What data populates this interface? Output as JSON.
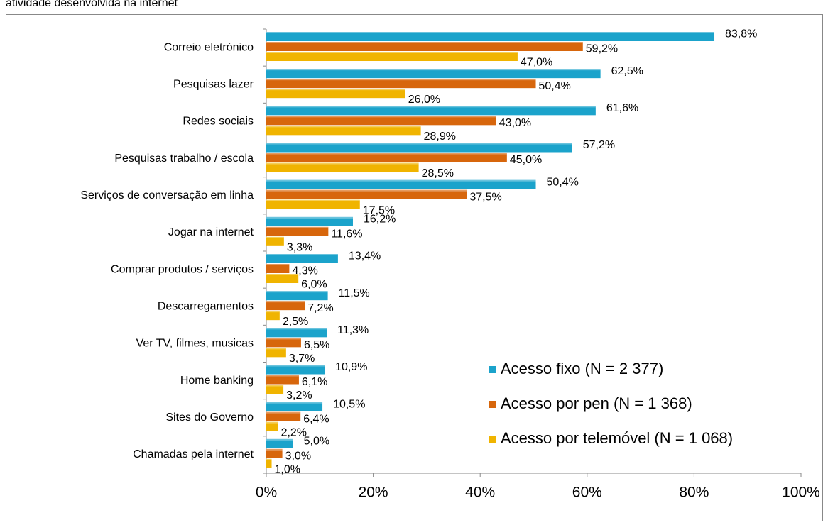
{
  "chart_data": {
    "type": "bar",
    "orientation": "horizontal",
    "subtitle": "atividade desenvolvida na internet",
    "categories": [
      "Correio eletrónico",
      "Pesquisas lazer",
      "Redes sociais",
      "Pesquisas trabalho / escola",
      "Serviços de conversação em linha",
      "Jogar na internet",
      "Comprar produtos / serviços",
      "Descarregamentos",
      "Ver TV, filmes, musicas",
      "Home banking",
      "Sites do Governo",
      "Chamadas pela internet"
    ],
    "series": [
      {
        "name": "Acesso fixo (N = 2 377)",
        "color": "#1ba3cb",
        "values": [
          83.8,
          62.5,
          61.6,
          57.2,
          50.4,
          16.2,
          13.4,
          11.5,
          11.3,
          10.9,
          10.5,
          5.0
        ],
        "value_labels": [
          "83,8%",
          "62,5%",
          "61,6%",
          "57,2%",
          "50,4%",
          "16,2%",
          "13,4%",
          "11,5%",
          "11,3%",
          "10,9%",
          "10,5%",
          "5,0%"
        ]
      },
      {
        "name": "Acesso por pen  (N = 1 368)",
        "color": "#d7660c",
        "values": [
          59.2,
          50.4,
          43.0,
          45.0,
          37.5,
          11.6,
          4.3,
          7.2,
          6.5,
          6.1,
          6.4,
          3.0
        ],
        "value_labels": [
          "59,2%",
          "50,4%",
          "43,0%",
          "45,0%",
          "37,5%",
          "11,6%",
          "4,3%",
          "7,2%",
          "6,5%",
          "6,1%",
          "6,4%",
          "3,0%"
        ]
      },
      {
        "name": "Acesso por telemóvel  (N = 1 068)",
        "color": "#f0b400",
        "values": [
          47.0,
          26.0,
          28.9,
          28.5,
          17.5,
          3.3,
          6.0,
          2.5,
          3.7,
          3.2,
          2.2,
          1.0
        ],
        "value_labels": [
          "47,0%",
          "26,0%",
          "28,9%",
          "28,5%",
          "17,5%",
          "3,3%",
          "6,0%",
          "2,5%",
          "3,7%",
          "3,2%",
          "2,2%",
          "1,0%"
        ]
      }
    ],
    "xlim": [
      0,
      100
    ],
    "xticks": [
      {
        "value": 0,
        "label": "0%"
      },
      {
        "value": 20,
        "label": "20%"
      },
      {
        "value": 40,
        "label": "40%"
      },
      {
        "value": 60,
        "label": "60%"
      },
      {
        "value": 80,
        "label": "80%"
      },
      {
        "value": 100,
        "label": "100%"
      }
    ],
    "legend": "lower right"
  }
}
